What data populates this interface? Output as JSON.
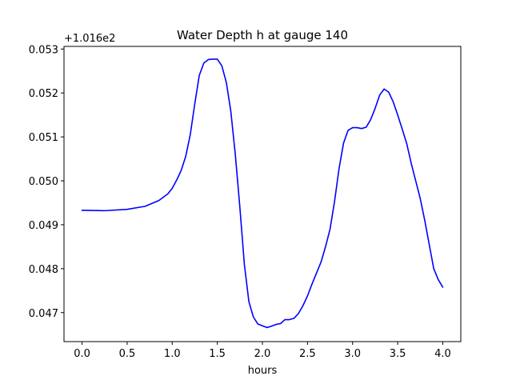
{
  "chart_data": {
    "type": "line",
    "title": "Water Depth h at gauge 140",
    "xlabel": "hours",
    "ylabel": "",
    "y_offset_label": "+1.016e2",
    "xlim": [
      -0.2,
      4.2
    ],
    "ylim": [
      0.04634,
      0.05306
    ],
    "grid": false,
    "x_ticks": [
      0.0,
      0.5,
      1.0,
      1.5,
      2.0,
      2.5,
      3.0,
      3.5,
      4.0
    ],
    "x_tick_labels": [
      "0.0",
      "0.5",
      "1.0",
      "1.5",
      "2.0",
      "2.5",
      "3.0",
      "3.5",
      "4.0"
    ],
    "y_ticks": [
      0.047,
      0.048,
      0.049,
      0.05,
      0.051,
      0.052,
      0.053
    ],
    "y_tick_labels": [
      "0.047",
      "0.048",
      "0.049",
      "0.050",
      "0.051",
      "0.052",
      "0.053"
    ],
    "series": [
      {
        "color": "#0000ff",
        "x": [
          0.0,
          0.25,
          0.5,
          0.7,
          0.85,
          0.95,
          1.0,
          1.05,
          1.1,
          1.15,
          1.2,
          1.25,
          1.3,
          1.35,
          1.4,
          1.45,
          1.5,
          1.55,
          1.6,
          1.65,
          1.7,
          1.75,
          1.8,
          1.85,
          1.9,
          1.95,
          2.0,
          2.05,
          2.1,
          2.15,
          2.2,
          2.25,
          2.3,
          2.35,
          2.4,
          2.45,
          2.5,
          2.55,
          2.6,
          2.65,
          2.7,
          2.75,
          2.8,
          2.85,
          2.9,
          2.95,
          3.0,
          3.05,
          3.1,
          3.15,
          3.2,
          3.25,
          3.3,
          3.35,
          3.4,
          3.45,
          3.5,
          3.55,
          3.6,
          3.65,
          3.7,
          3.75,
          3.8,
          3.85,
          3.9,
          3.95,
          4.0
        ],
        "y": [
          0.04933,
          0.04932,
          0.04935,
          0.04942,
          0.04955,
          0.0497,
          0.04983,
          0.05002,
          0.05024,
          0.05056,
          0.05105,
          0.05175,
          0.0524,
          0.05268,
          0.05276,
          0.05277,
          0.05277,
          0.05262,
          0.05224,
          0.05158,
          0.05059,
          0.0494,
          0.0481,
          0.04725,
          0.0469,
          0.04674,
          0.0467,
          0.04666,
          0.04669,
          0.04673,
          0.04675,
          0.04684,
          0.04684,
          0.04687,
          0.04698,
          0.04716,
          0.04738,
          0.04765,
          0.0479,
          0.04815,
          0.0485,
          0.0489,
          0.04953,
          0.05028,
          0.05086,
          0.05115,
          0.05121,
          0.05121,
          0.05119,
          0.05122,
          0.05139,
          0.05165,
          0.05195,
          0.05209,
          0.05202,
          0.0518,
          0.0515,
          0.05118,
          0.05085,
          0.0504,
          0.05,
          0.0496,
          0.0491,
          0.04855,
          0.048,
          0.04775,
          0.04758
        ]
      }
    ]
  }
}
